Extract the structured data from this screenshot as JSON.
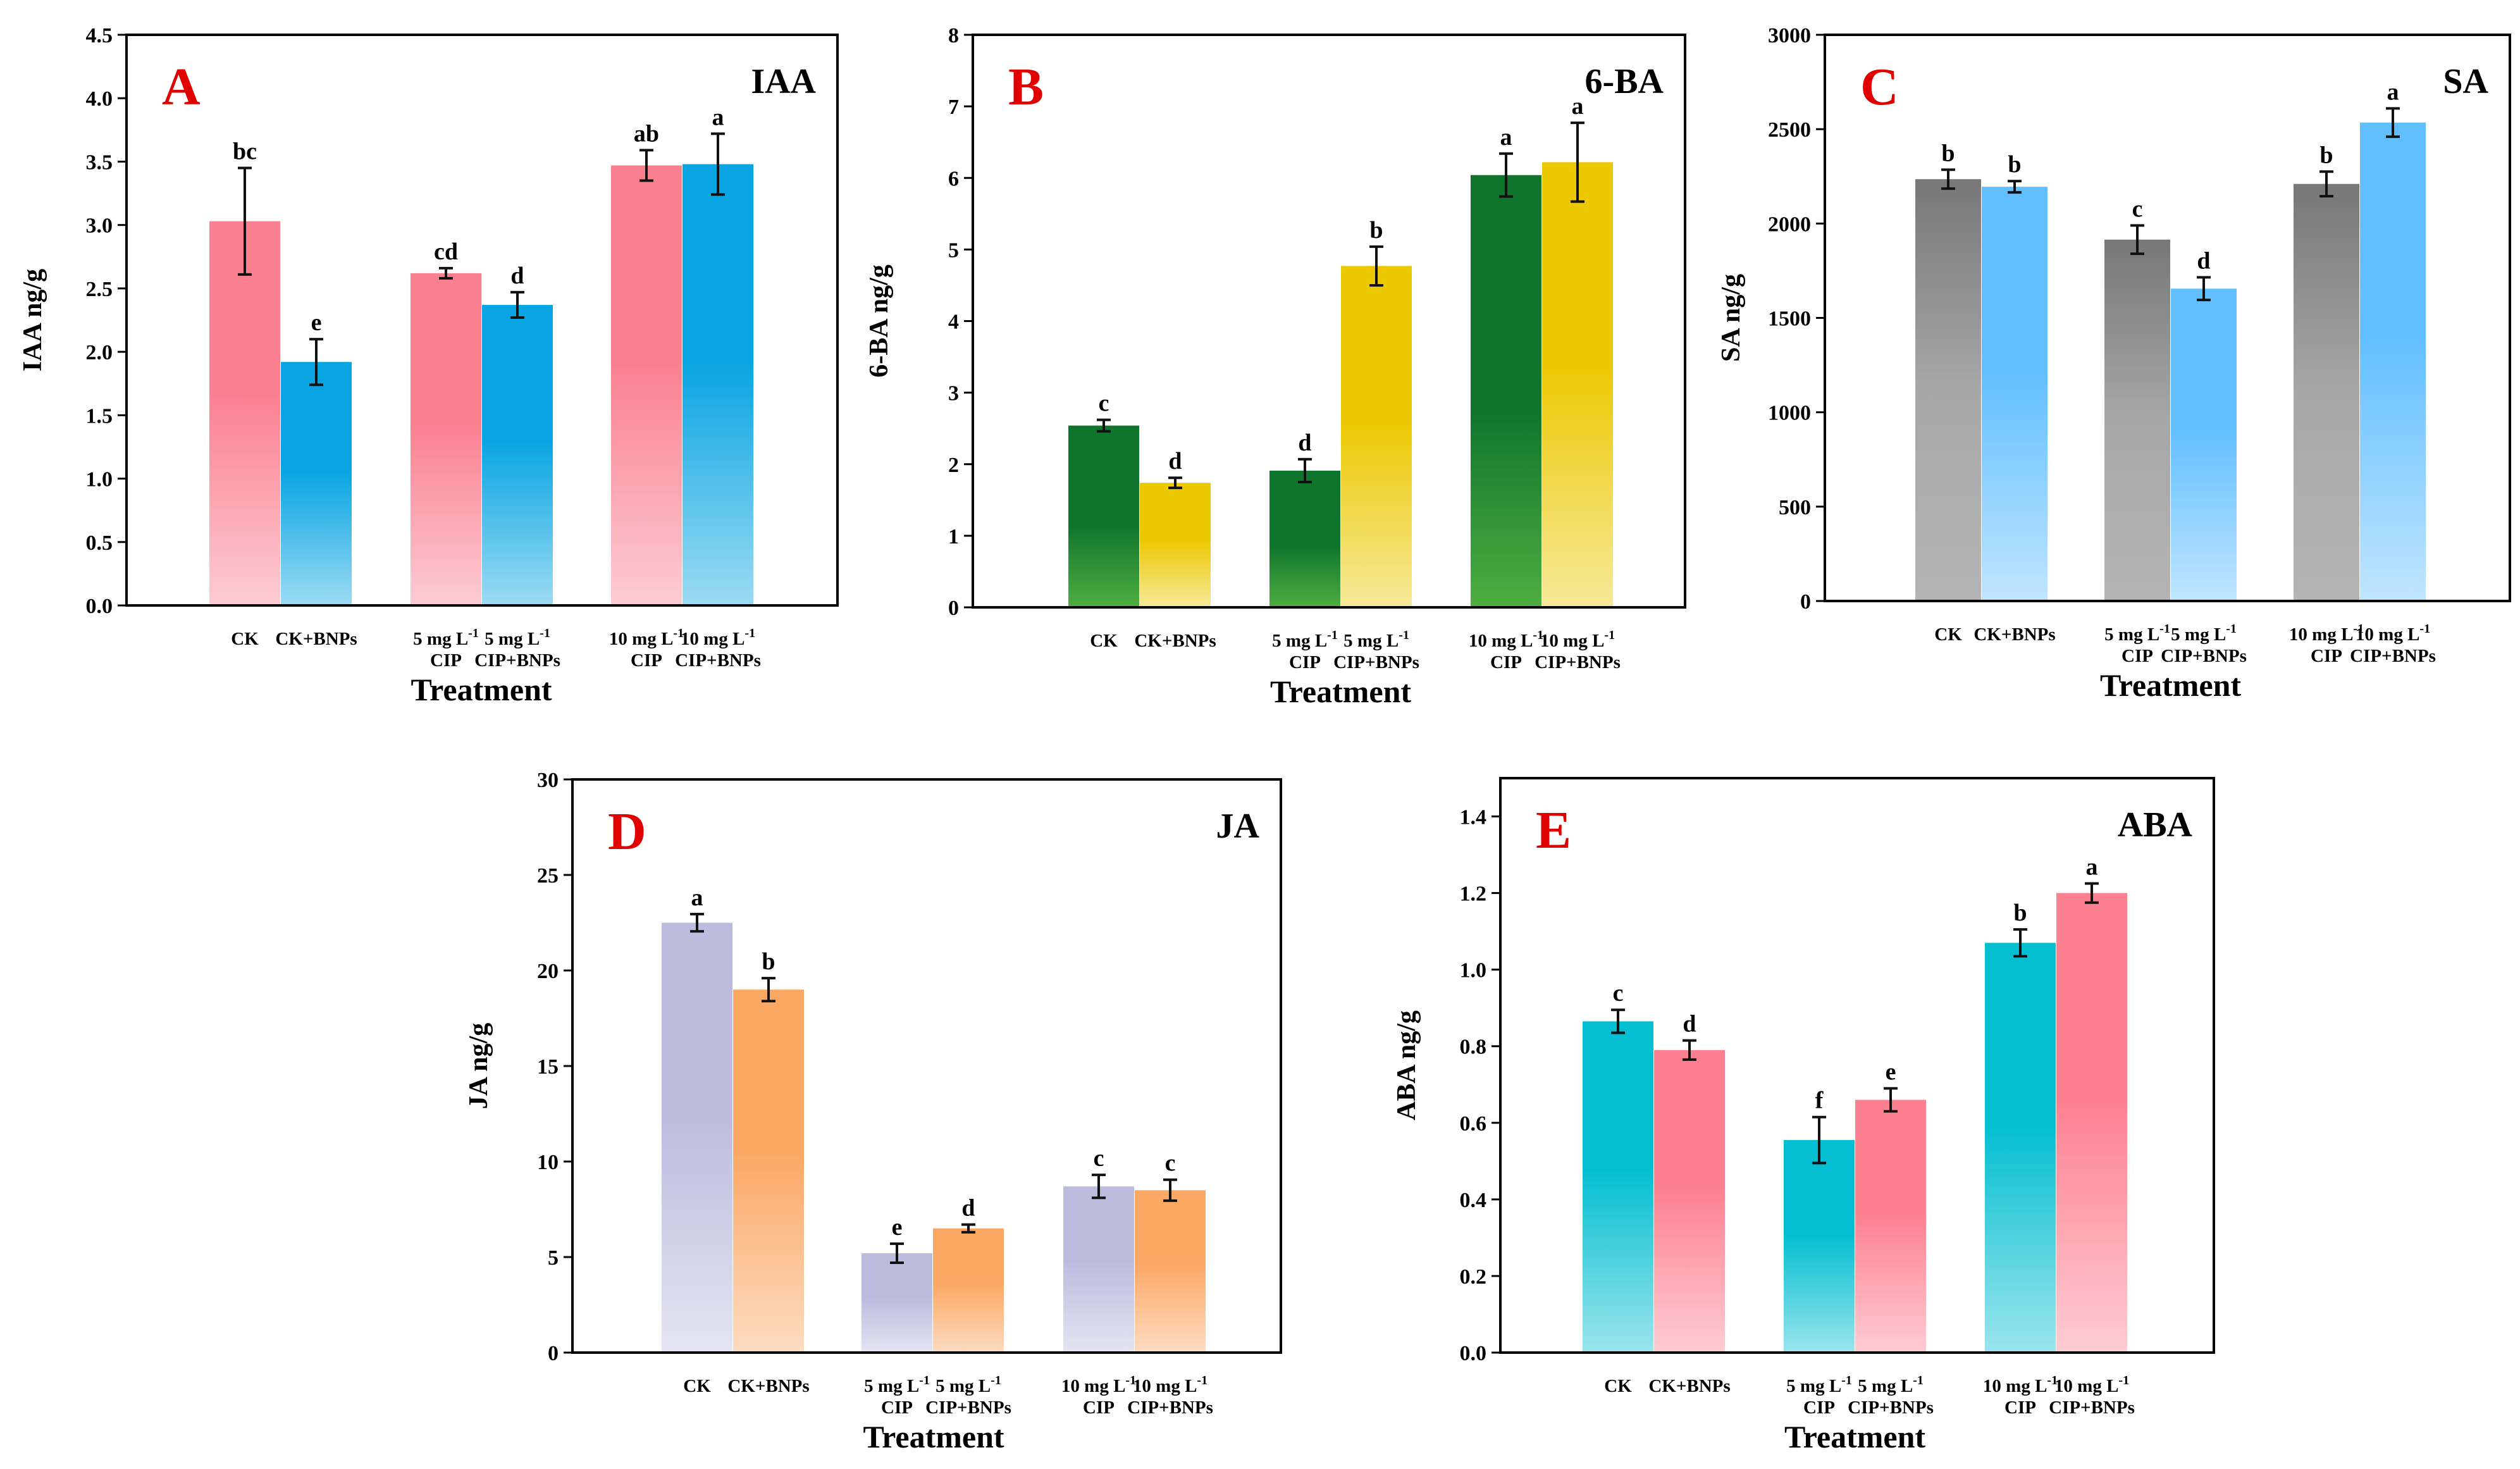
{
  "colors": {
    "A": [
      "#fa8090",
      "#08a5e2"
    ],
    "B": [
      "#10752c",
      "#ecc800"
    ],
    "C": [
      "#777777",
      "#62bfff"
    ],
    "D": [
      "#bcbcdf",
      "#fba865"
    ],
    "E": [
      "#04bfd1",
      "#fd8090"
    ],
    "panel_letter": "#e00000"
  },
  "chart_data": [
    {
      "panel": "A",
      "type": "bar",
      "title": "IAA",
      "ylabel": "IAA ng/g",
      "xlabel": "Treatment",
      "ylim": [
        0,
        4.5
      ],
      "yticks": [
        "0.0",
        "0.5",
        "1.0",
        "1.5",
        "2.0",
        "2.5",
        "3.0",
        "3.5",
        "4.0",
        "4.5"
      ],
      "categories": [
        [
          "CK"
        ],
        [
          "CK+BNPs"
        ],
        [
          "5 mg L-1",
          "CIP"
        ],
        [
          "5 mg L-1",
          "CIP+BNPs"
        ],
        [
          "10 mg L-1",
          "CIP"
        ],
        [
          "10 mg L-1",
          "CIP+BNPs"
        ]
      ],
      "values": [
        3.03,
        1.92,
        2.62,
        2.37,
        3.47,
        3.48
      ],
      "errors": [
        0.42,
        0.18,
        0.04,
        0.1,
        0.12,
        0.24
      ],
      "letters": [
        "bc",
        "e",
        "cd",
        "d",
        "ab",
        "a"
      ]
    },
    {
      "panel": "B",
      "type": "bar",
      "title": "6-BA",
      "ylabel": "6-BA ng/g",
      "xlabel": "Treatment",
      "ylim": [
        0,
        8
      ],
      "yticks": [
        "0",
        "1",
        "2",
        "3",
        "4",
        "5",
        "6",
        "7",
        "8"
      ],
      "categories": [
        [
          "CK"
        ],
        [
          "CK+BNPs"
        ],
        [
          "5 mg L-1",
          "CIP"
        ],
        [
          "5 mg L-1",
          "CIP+BNPs"
        ],
        [
          "10 mg L-1",
          "CIP"
        ],
        [
          "10 mg L-1",
          "CIP+BNPs"
        ]
      ],
      "values": [
        2.54,
        1.74,
        1.91,
        4.77,
        6.04,
        6.22
      ],
      "errors": [
        0.08,
        0.07,
        0.16,
        0.27,
        0.3,
        0.55
      ],
      "letters": [
        "c",
        "d",
        "d",
        "b",
        "a",
        "a"
      ]
    },
    {
      "panel": "C",
      "type": "bar",
      "title": "SA",
      "ylabel": "SA ng/g",
      "xlabel": "Treatment",
      "ylim": [
        0,
        3000
      ],
      "yticks": [
        "0",
        "500",
        "1000",
        "1500",
        "2000",
        "2500",
        "3000"
      ],
      "categories": [
        [
          "CK"
        ],
        [
          "CK+BNPs"
        ],
        [
          "5 mg L-1",
          "CIP"
        ],
        [
          "5 mg L-1",
          "CIP+BNPs"
        ],
        [
          "10 mg L-1",
          "CIP"
        ],
        [
          "10 mg L-1",
          "CIP+BNPs"
        ]
      ],
      "values": [
        2235,
        2195,
        1915,
        1655,
        2210,
        2535
      ],
      "errors": [
        50,
        30,
        75,
        60,
        65,
        75
      ],
      "letters": [
        "b",
        "b",
        "c",
        "d",
        "b",
        "a"
      ]
    },
    {
      "panel": "D",
      "type": "bar",
      "title": "JA",
      "ylabel": "JA ng/g",
      "xlabel": "Treatment",
      "ylim": [
        0,
        30
      ],
      "yticks": [
        "0",
        "5",
        "10",
        "15",
        "20",
        "25",
        "30"
      ],
      "categories": [
        [
          "CK"
        ],
        [
          "CK+BNPs"
        ],
        [
          "5 mg L-1",
          "CIP"
        ],
        [
          "5 mg L-1",
          "CIP+BNPs"
        ],
        [
          "10 mg L-1",
          "CIP"
        ],
        [
          "10 mg L-1",
          "CIP+BNPs"
        ]
      ],
      "values": [
        22.5,
        19.0,
        5.2,
        6.5,
        8.7,
        8.5
      ],
      "errors": [
        0.45,
        0.6,
        0.5,
        0.2,
        0.6,
        0.55
      ],
      "letters": [
        "a",
        "b",
        "e",
        "d",
        "c",
        "c"
      ]
    },
    {
      "panel": "E",
      "type": "bar",
      "title": "ABA",
      "ylabel": "ABA ng/g",
      "xlabel": "Treatment",
      "ylim": [
        0,
        1.5
      ],
      "yticks": [
        "0.0",
        "0.2",
        "0.4",
        "0.6",
        "0.8",
        "1.0",
        "1.2",
        "1.4"
      ],
      "categories": [
        [
          "CK"
        ],
        [
          "CK+BNPs"
        ],
        [
          "5 mg L-1",
          "CIP"
        ],
        [
          "5 mg L-1",
          "CIP+BNPs"
        ],
        [
          "10 mg L-1",
          "CIP"
        ],
        [
          "10 mg L-1",
          "CIP+BNPs"
        ]
      ],
      "values": [
        0.865,
        0.79,
        0.555,
        0.66,
        1.07,
        1.2
      ],
      "errors": [
        0.03,
        0.025,
        0.06,
        0.03,
        0.035,
        0.025
      ],
      "letters": [
        "c",
        "d",
        "f",
        "e",
        "b",
        "a"
      ]
    }
  ]
}
